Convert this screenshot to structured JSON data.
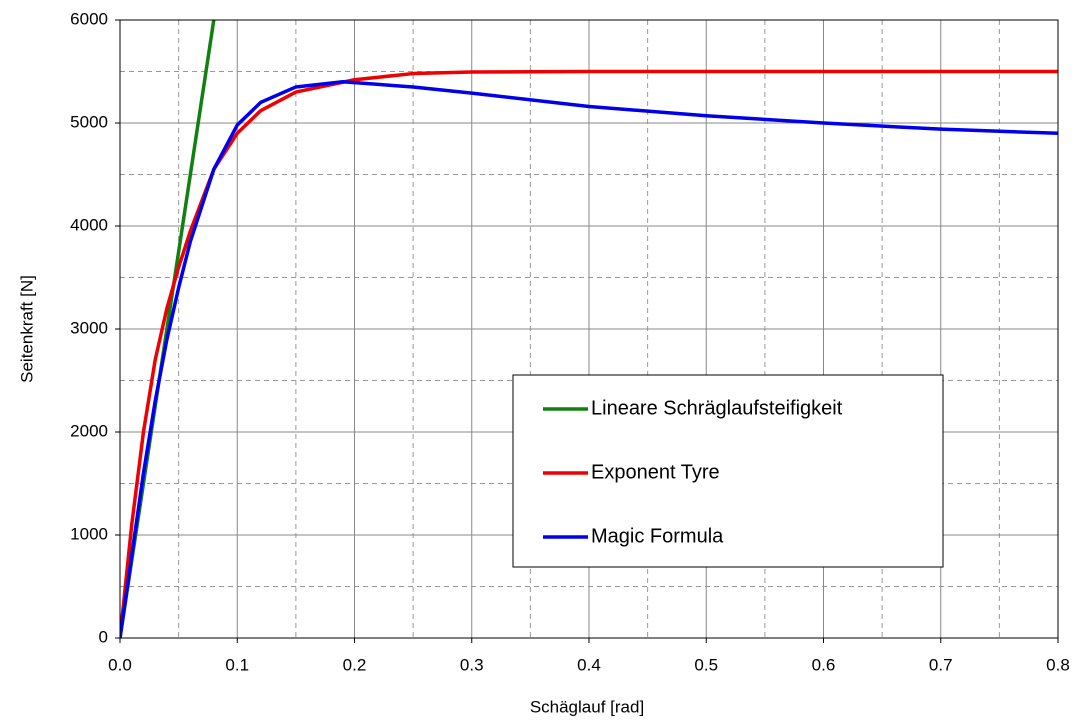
{
  "chart_data": {
    "type": "line",
    "xlabel": "Schäglauf [rad]",
    "ylabel": "Seitenkraft [N]",
    "xlim": [
      0,
      0.8
    ],
    "ylim": [
      0,
      6000
    ],
    "xticks": [
      {
        "value": 0,
        "label": "0.0"
      },
      0.1,
      0.2,
      0.3,
      0.4,
      0.5,
      0.6,
      0.7,
      0.8
    ],
    "yticks": [
      0,
      1000,
      2000,
      3000,
      4000,
      5000,
      6000
    ],
    "grid": true,
    "legend": "lower right",
    "series": [
      {
        "name": "Lineare Schräglaufsteifigkeit",
        "color": "#108010",
        "x": [
          0,
          0.08
        ],
        "values": [
          0,
          6000
        ]
      },
      {
        "name": "Exponent Tyre",
        "color": "#ee0000",
        "x": [
          0,
          0.01,
          0.02,
          0.03,
          0.04,
          0.05,
          0.06,
          0.07,
          0.08,
          0.1,
          0.12,
          0.15,
          0.2,
          0.25,
          0.3,
          0.4,
          0.5,
          0.6,
          0.7,
          0.8
        ],
        "values": [
          0,
          1100,
          2000,
          2700,
          3200,
          3600,
          3950,
          4250,
          4550,
          4900,
          5120,
          5300,
          5420,
          5480,
          5495,
          5500,
          5500,
          5500,
          5500,
          5500
        ]
      },
      {
        "name": "Magic Formula",
        "color": "#0000ee",
        "x": [
          0,
          0.01,
          0.02,
          0.03,
          0.04,
          0.05,
          0.06,
          0.07,
          0.08,
          0.1,
          0.12,
          0.15,
          0.19,
          0.25,
          0.3,
          0.4,
          0.5,
          0.6,
          0.7,
          0.8
        ],
        "values": [
          0,
          800,
          1600,
          2300,
          2900,
          3400,
          3850,
          4200,
          4550,
          4980,
          5200,
          5350,
          5400,
          5350,
          5290,
          5160,
          5070,
          5000,
          4940,
          4900
        ]
      }
    ]
  }
}
